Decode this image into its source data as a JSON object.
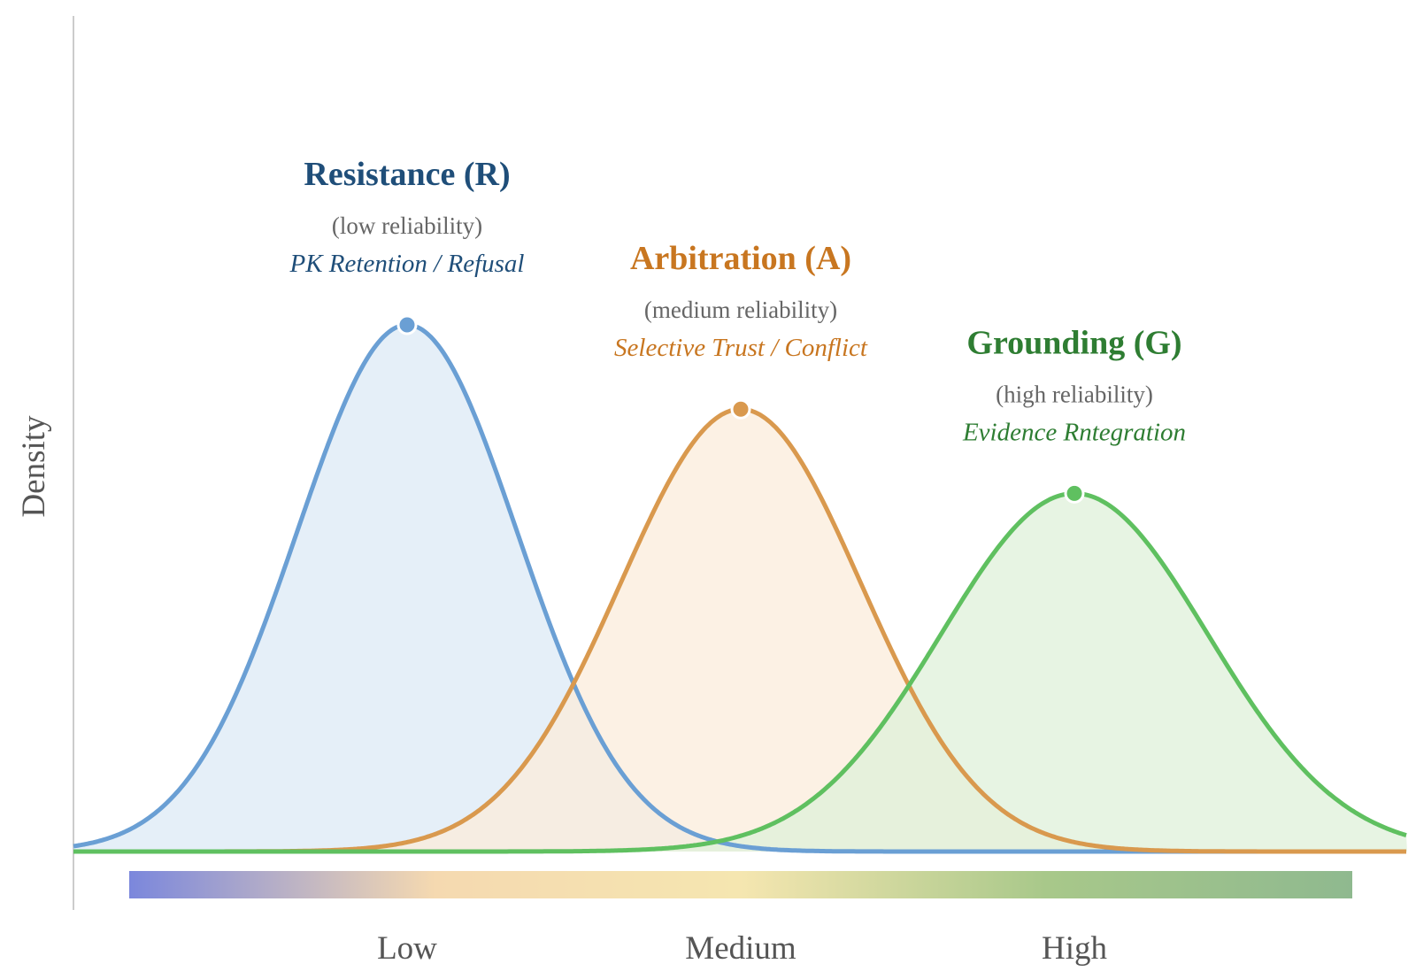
{
  "chart_data": {
    "type": "area",
    "title": "",
    "xlabel": "",
    "ylabel": "Density",
    "xlim": [
      -1.0,
      3.0
    ],
    "ylim": [
      0,
      1.0
    ],
    "grid": false,
    "legend": "none",
    "x_ticks": [
      {
        "value": 0,
        "label": "Low"
      },
      {
        "value": 1,
        "label": "Medium"
      },
      {
        "value": 2,
        "label": "High"
      }
    ],
    "series": [
      {
        "key": "R",
        "name": "Resistance (R)",
        "reliability": "(low reliability)",
        "role": "PK Retention / Refusal",
        "mean": 0,
        "sd": 0.33,
        "peak": 1.0,
        "line_color": "#6a9fd4",
        "fill_color": "#dce9f5",
        "title_color": "#1f4e79"
      },
      {
        "key": "A",
        "name": "Arbitration (A)",
        "reliability": "(medium reliability)",
        "role": "Selective Trust / Conflict",
        "mean": 1,
        "sd": 0.36,
        "peak": 0.84,
        "line_color": "#d9994e",
        "fill_color": "#fbecdb",
        "title_color": "#c87620"
      },
      {
        "key": "G",
        "name": "Grounding (G)",
        "reliability": "(high reliability)",
        "role": "Evidence Rntegration",
        "mean": 2,
        "sd": 0.4,
        "peak": 0.68,
        "line_color": "#5fc060",
        "fill_color": "#dff0da",
        "title_color": "#2e7d32"
      }
    ],
    "gradient_bar": {
      "colors": [
        "#7b87dc",
        "#f5d9b0",
        "#f5e6b0",
        "#a8c88a",
        "#8fb98f"
      ]
    }
  }
}
